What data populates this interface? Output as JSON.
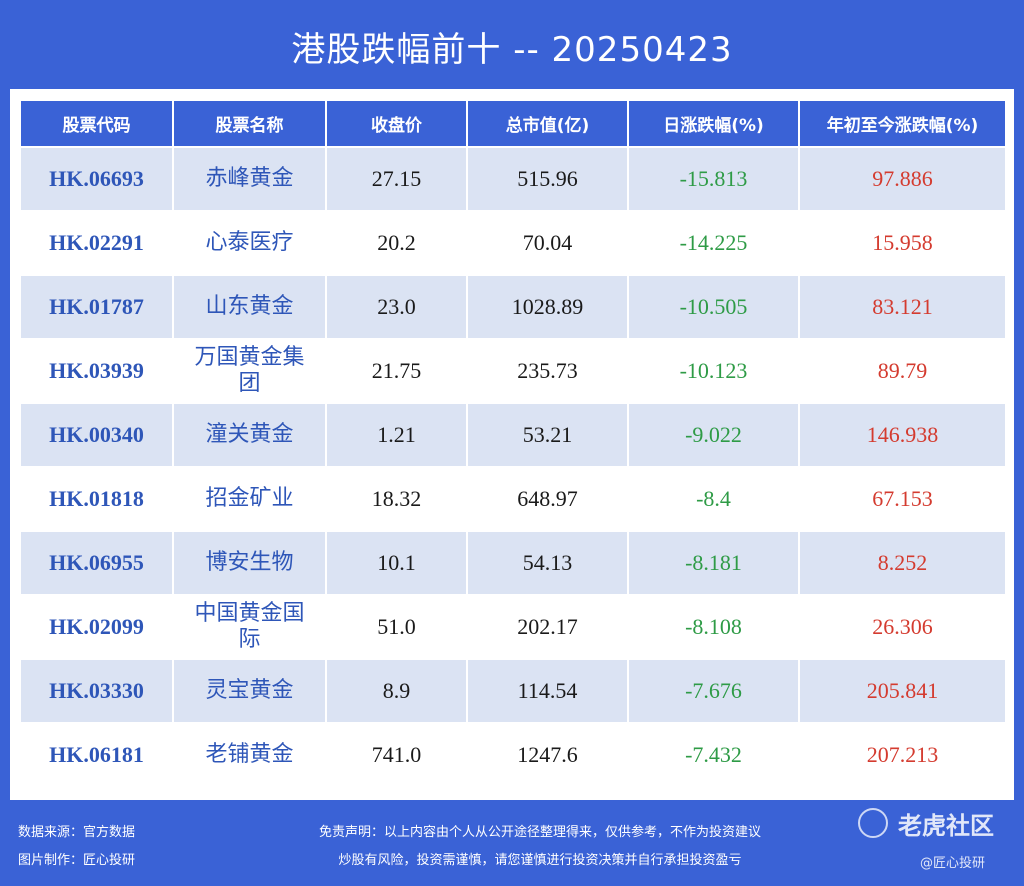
{
  "title": "港股跌幅前十 -- 20250423",
  "table": {
    "headers": [
      "股票代码",
      "股票名称",
      "收盘价",
      "总市值(亿)",
      "日涨跌幅(%)",
      "年初至今涨跌幅(%)"
    ],
    "rows": [
      [
        "HK.06693",
        "赤峰黄金",
        "27.15",
        "515.96",
        "-15.813",
        "97.886"
      ],
      [
        "HK.02291",
        "心泰医疗",
        "20.2",
        "70.04",
        "-14.225",
        "15.958"
      ],
      [
        "HK.01787",
        "山东黄金",
        "23.0",
        "1028.89",
        "-10.505",
        "83.121"
      ],
      [
        "HK.03939",
        "万国黄金集团",
        "21.75",
        "235.73",
        "-10.123",
        "89.79"
      ],
      [
        "HK.00340",
        "潼关黄金",
        "1.21",
        "53.21",
        "-9.022",
        "146.938"
      ],
      [
        "HK.01818",
        "招金矿业",
        "18.32",
        "648.97",
        "-8.4",
        "67.153"
      ],
      [
        "HK.06955",
        "博安生物",
        "10.1",
        "54.13",
        "-8.181",
        "8.252"
      ],
      [
        "HK.02099",
        "中国黄金国际",
        "51.0",
        "202.17",
        "-8.108",
        "26.306"
      ],
      [
        "HK.03330",
        "灵宝黄金",
        "8.9",
        "114.54",
        "-7.676",
        "205.841"
      ],
      [
        "HK.06181",
        "老铺黄金",
        "741.0",
        "1247.6",
        "-7.432",
        "207.213"
      ]
    ]
  },
  "footer": {
    "source": "数据来源：官方数据",
    "maker": "图片制作：匠心投研",
    "disclaimer_1": "免责声明：以上内容由个人从公开途径整理得来，仅供参考，不作为投资建议",
    "disclaimer_2": "炒股有风险，投资需谨慎，请您谨慎进行投资决策并自行承担投资盈亏"
  },
  "watermark": {
    "brand": "老虎社区",
    "handle": "@匠心投研"
  },
  "colors": {
    "background": "#3a62d6",
    "header": "#3a62d6",
    "stripe": "#dbe3f3",
    "code": "#2e56b8",
    "negative": "#2e9b46",
    "positive": "#d43b2f"
  }
}
